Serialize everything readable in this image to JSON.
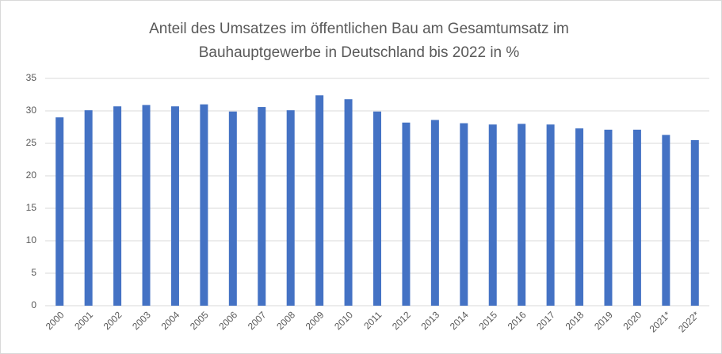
{
  "chart_data": {
    "type": "bar",
    "title": [
      "Anteil des Umsatzes im öffentlichen Bau am Gesamtumsatz im",
      "Bauhauptgewerbe in Deutschland bis 2022 in %"
    ],
    "categories": [
      "2000",
      "2001",
      "2002",
      "2003",
      "2004",
      "2005",
      "2006",
      "2007",
      "2008",
      "2009",
      "2010",
      "2011",
      "2012",
      "2013",
      "2014",
      "2015",
      "2016",
      "2017",
      "2018",
      "2019",
      "2020",
      "2021*",
      "2022*"
    ],
    "values": [
      29.0,
      30.1,
      30.7,
      30.9,
      30.7,
      31.0,
      29.9,
      30.6,
      30.1,
      32.4,
      31.8,
      29.9,
      28.2,
      28.6,
      28.1,
      27.9,
      28.0,
      27.9,
      27.3,
      27.1,
      27.1,
      26.3,
      25.5
    ],
    "color": "#4472c4",
    "ylim": [
      0,
      35
    ],
    "yticks": [
      0,
      5,
      10,
      15,
      20,
      25,
      30,
      35
    ],
    "grid": true
  }
}
